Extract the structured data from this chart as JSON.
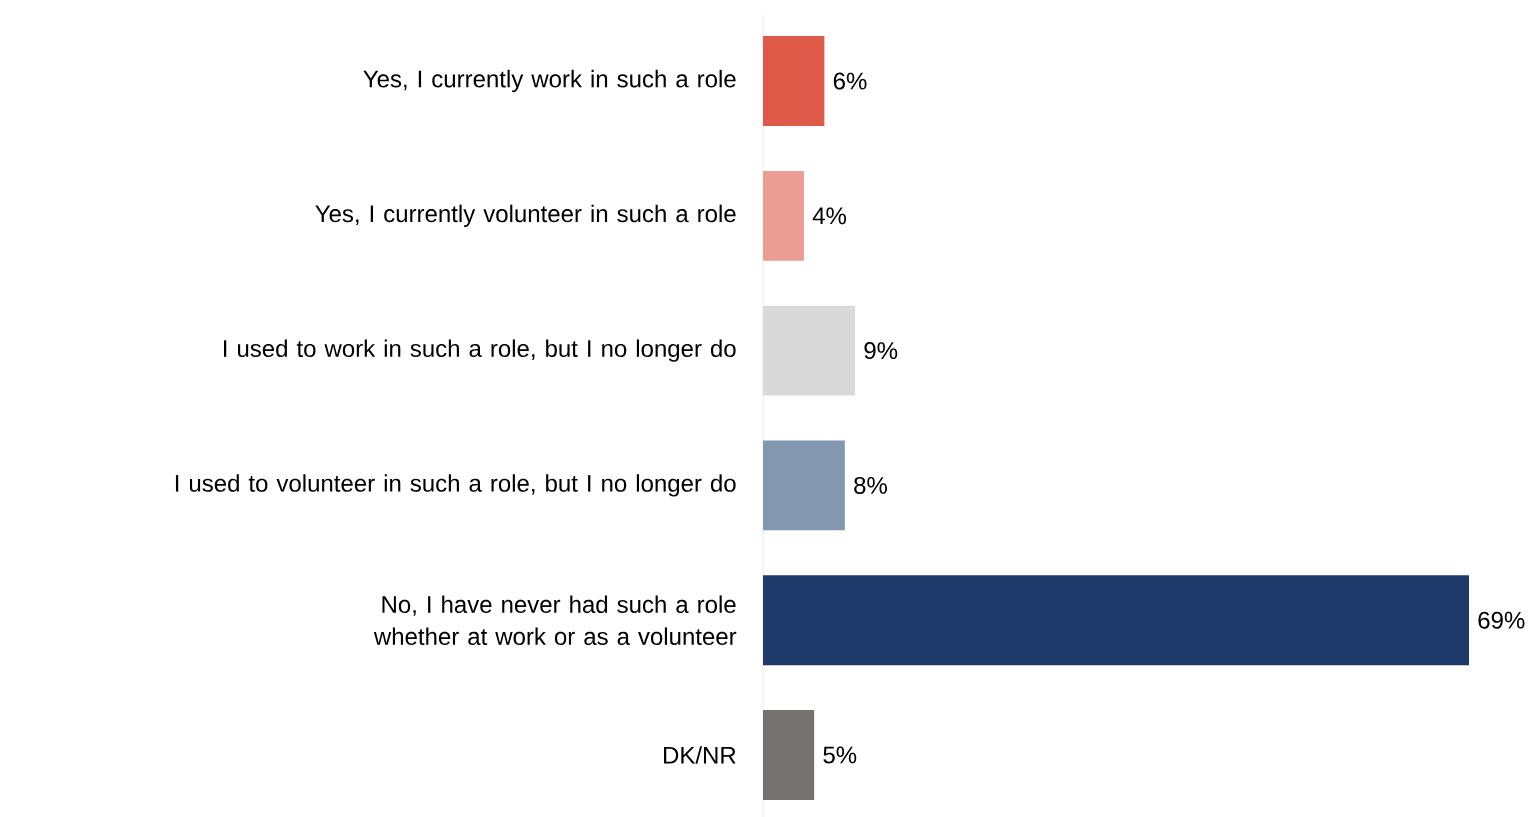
{
  "chart_data": {
    "type": "bar",
    "orientation": "horizontal",
    "categories": [
      "Yes, I currently work in such a role",
      "Yes, I currently volunteer in such a role",
      "I used to work in such a role, but I no longer do",
      "I used to volunteer in such a role, but I no longer do",
      "No, I have never had such a role whether at work or as a volunteer",
      "DK/NR"
    ],
    "values": [
      6,
      4,
      9,
      8,
      69,
      5
    ],
    "value_labels": [
      "6%",
      "4%",
      "9%",
      "8%",
      "69%",
      "5%"
    ],
    "colors": [
      "#e05a4a",
      "#eb9c93",
      "#d9d9d9",
      "#8497b0",
      "#1d3a6a",
      "#767171"
    ]
  }
}
